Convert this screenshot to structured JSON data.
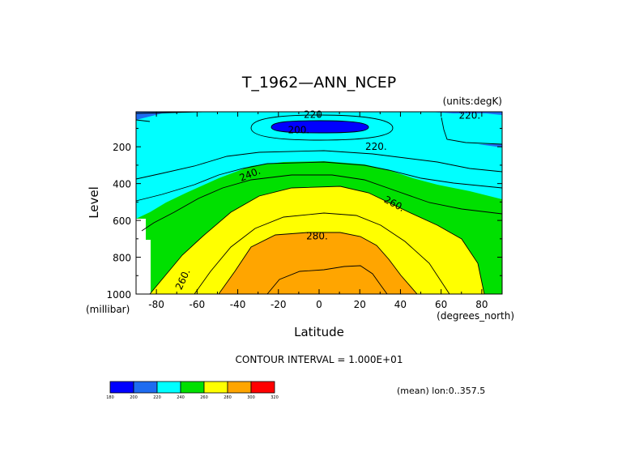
{
  "chart_data": {
    "type": "contour",
    "title": "T_1962—ANN_NCEP",
    "units_label": "(units:degK)",
    "xlabel": "Latitude",
    "x_units": "(degrees_north)",
    "ylabel": "Level",
    "y_units": "(millibar)",
    "xlim": [
      -90,
      90
    ],
    "ylim": [
      1000,
      10
    ],
    "y_inverted": true,
    "x_ticks": [
      -80,
      -60,
      -40,
      -20,
      0,
      20,
      40,
      60,
      80
    ],
    "y_ticks": [
      200,
      400,
      600,
      800,
      1000
    ],
    "contour_interval_text": "CONTOUR INTERVAL = 1.000E+01",
    "contour_interval": 10,
    "mean_text": "(mean) lon:0..357.5",
    "contour_labels": [
      {
        "text": "220",
        "lat": -3,
        "lev": 25
      },
      {
        "text": "200.",
        "lat": -10,
        "lev": 110
      },
      {
        "text": "220.",
        "lat": 28,
        "lev": 200
      },
      {
        "text": "220.",
        "lat": 74,
        "lev": 30
      },
      {
        "text": "240.",
        "lat": -34,
        "lev": 350
      },
      {
        "text": "260.",
        "lat": 37,
        "lev": 510
      },
      {
        "text": "280.",
        "lat": -1,
        "lev": 685
      },
      {
        "text": "260.",
        "lat": -67,
        "lev": 920
      }
    ],
    "colorbar": {
      "levels": [
        "180",
        "200",
        "220",
        "240",
        "260",
        "280",
        "300",
        "320"
      ],
      "colors": [
        "#0000ff",
        "#1e6cf0",
        "#00ffff",
        "#00e000",
        "#ffff00",
        "#ffa500",
        "#ff0000"
      ]
    },
    "fill_colors": {
      "t200_220": "#1e6cf0",
      "t180_200": "#0000ff",
      "t220_240": "#00ffff",
      "t240_260": "#00e000",
      "t260_280": "#ffff00",
      "t280_300": "#ffa500"
    }
  }
}
